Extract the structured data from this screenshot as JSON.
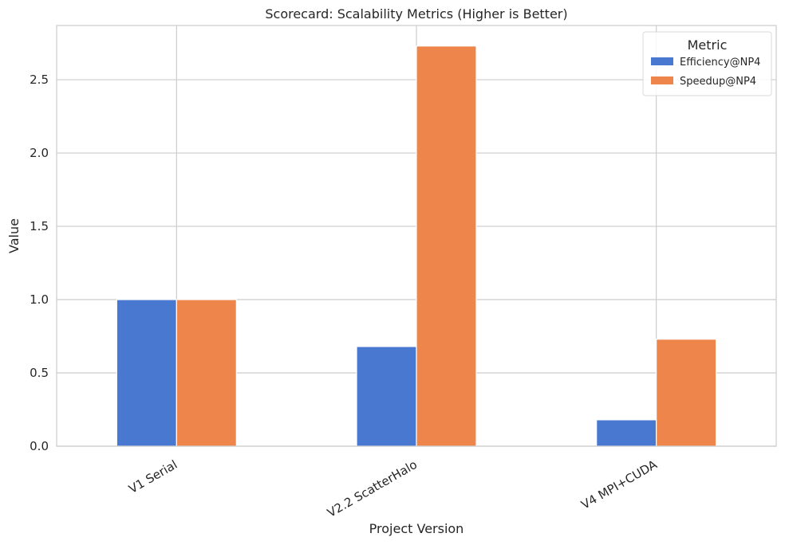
{
  "chart_data": {
    "type": "bar",
    "title": "Scorecard: Scalability Metrics (Higher is Better)",
    "xlabel": "Project Version",
    "ylabel": "Value",
    "categories": [
      "V1 Serial",
      "V2.2 ScatterHalo",
      "V4 MPI+CUDA"
    ],
    "series": [
      {
        "name": "Efficiency@NP4",
        "values": [
          1.0,
          0.68,
          0.18
        ],
        "color": "#4878d0"
      },
      {
        "name": "Speedup@NP4",
        "values": [
          1.0,
          2.73,
          0.73
        ],
        "color": "#ee854a"
      }
    ],
    "ylim": [
      0,
      2.87
    ],
    "yticks": [
      0.0,
      0.5,
      1.0,
      1.5,
      2.0,
      2.5
    ],
    "ytick_labels": [
      "0.0",
      "0.5",
      "1.0",
      "1.5",
      "2.0",
      "2.5"
    ],
    "grid": true,
    "legend": {
      "title": "Metric",
      "position": "top-right"
    }
  }
}
